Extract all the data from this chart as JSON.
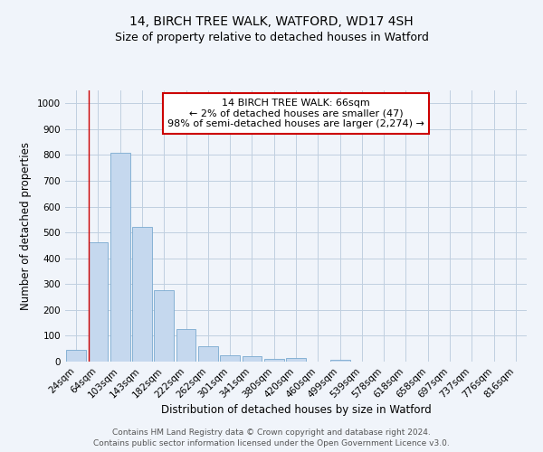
{
  "title": "14, BIRCH TREE WALK, WATFORD, WD17 4SH",
  "subtitle": "Size of property relative to detached houses in Watford",
  "xlabel": "Distribution of detached houses by size in Watford",
  "ylabel": "Number of detached properties",
  "bar_labels": [
    "24sqm",
    "64sqm",
    "103sqm",
    "143sqm",
    "182sqm",
    "222sqm",
    "262sqm",
    "301sqm",
    "341sqm",
    "380sqm",
    "420sqm",
    "460sqm",
    "499sqm",
    "539sqm",
    "578sqm",
    "618sqm",
    "658sqm",
    "697sqm",
    "737sqm",
    "776sqm",
    "816sqm"
  ],
  "bar_values": [
    47,
    462,
    808,
    520,
    275,
    125,
    60,
    25,
    22,
    12,
    13,
    0,
    8,
    0,
    0,
    0,
    0,
    0,
    0,
    0,
    0
  ],
  "bar_color": "#c5d8ee",
  "bar_edge_color": "#7aaad0",
  "annotation_box_text": "14 BIRCH TREE WALK: 66sqm\n← 2% of detached houses are smaller (47)\n98% of semi-detached houses are larger (2,274) →",
  "annotation_box_color": "#cc0000",
  "vline_color": "#cc0000",
  "ylim": [
    0,
    1050
  ],
  "yticks": [
    0,
    100,
    200,
    300,
    400,
    500,
    600,
    700,
    800,
    900,
    1000
  ],
  "footer_line1": "Contains HM Land Registry data © Crown copyright and database right 2024.",
  "footer_line2": "Contains public sector information licensed under the Open Government Licence v3.0.",
  "bg_color": "#f0f4fa",
  "plot_bg_color": "#f0f4fa",
  "grid_color": "#c0cfe0",
  "title_fontsize": 10,
  "subtitle_fontsize": 9,
  "axis_label_fontsize": 8.5,
  "tick_fontsize": 7.5,
  "annotation_fontsize": 8,
  "footer_fontsize": 6.5
}
